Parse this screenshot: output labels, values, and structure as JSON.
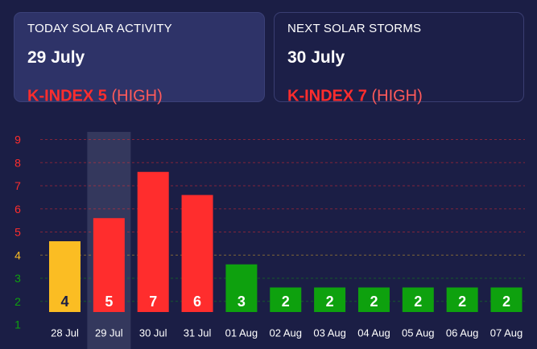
{
  "today_card": {
    "title": "TODAY SOLAR ACTIVITY",
    "date": "29 July",
    "k_index_label": "K-INDEX 5",
    "level_label": "(HIGH)"
  },
  "next_card": {
    "title": "NEXT SOLAR STORMS",
    "date": "30 July",
    "k_index_label": "K-INDEX 7",
    "level_label": "(HIGH)"
  },
  "colors": {
    "high": "#ff2d2d",
    "moderate": "#fbbd23",
    "low": "#0ea10e",
    "highlight_column": "#34385d"
  },
  "chart_data": {
    "type": "bar",
    "categories": [
      "28 Jul",
      "29 Jul",
      "30 Jul",
      "31 Jul",
      "01 Aug",
      "02 Aug",
      "03 Aug",
      "04 Aug",
      "05 Aug",
      "06 Aug",
      "07 Aug"
    ],
    "values": [
      4,
      5,
      7,
      6,
      3,
      2,
      2,
      2,
      2,
      2,
      2
    ],
    "data_labels": [
      "4",
      "5",
      "7",
      "6",
      "3",
      "2",
      "2",
      "2",
      "2",
      "2",
      "2"
    ],
    "bar_display_heights": [
      4.6,
      5.6,
      7.6,
      6.6,
      3.6,
      2.6,
      2.6,
      2.6,
      2.6,
      2.6,
      2.6
    ],
    "highlighted_category": "29 Jul",
    "y_ticks": [
      "1",
      "2",
      "3",
      "4",
      "5",
      "6",
      "7",
      "8",
      "9"
    ],
    "ylim": [
      1,
      9
    ],
    "title": "",
    "xlabel": "",
    "ylabel": "",
    "grid": true
  }
}
